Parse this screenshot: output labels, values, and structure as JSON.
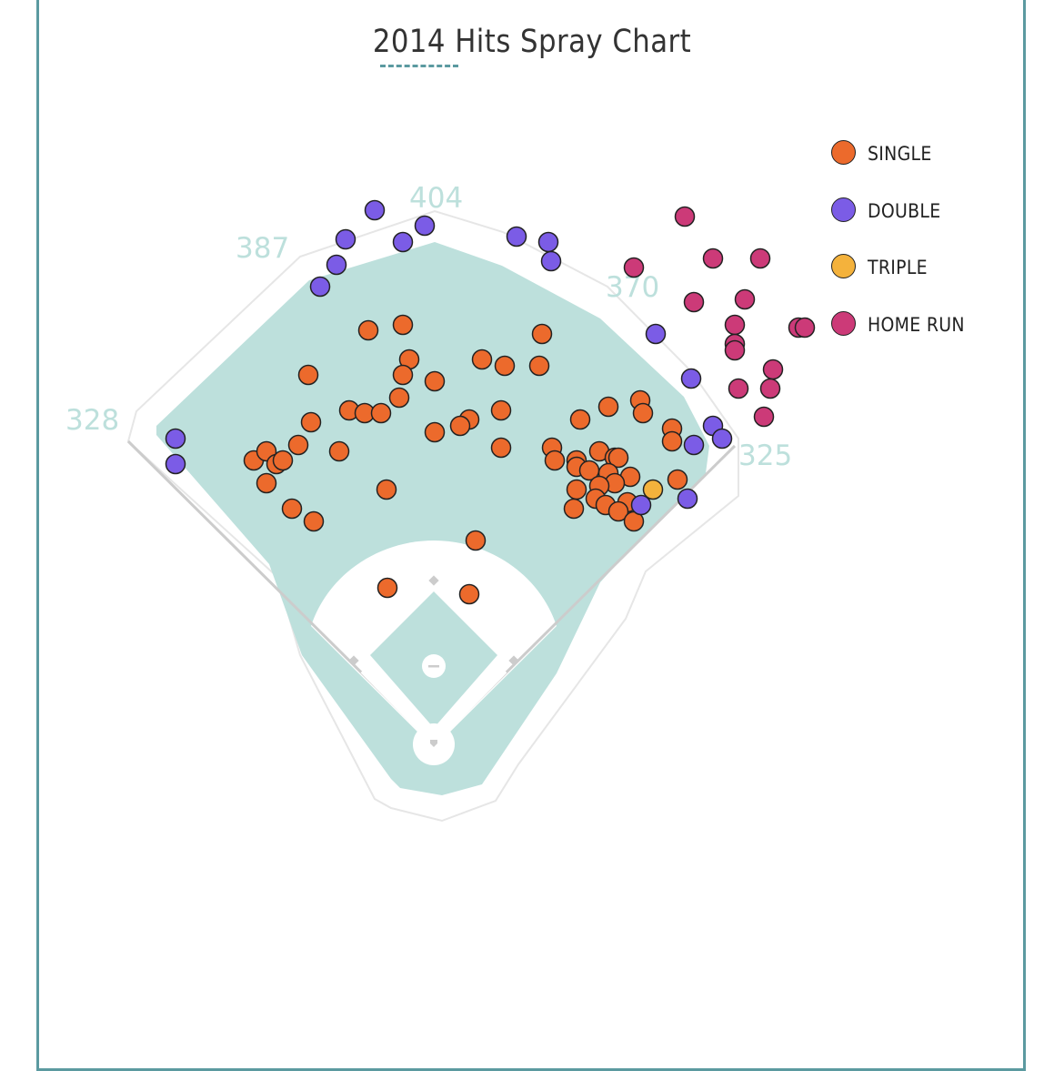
{
  "chart_data": {
    "type": "scatter",
    "title": "2014 Hits Spray Chart",
    "field": {
      "wall_distances": [
        {
          "label": "328",
          "position": "left-field-line"
        },
        {
          "label": "387",
          "position": "left-center"
        },
        {
          "label": "404",
          "position": "center"
        },
        {
          "label": "370",
          "position": "right-center"
        },
        {
          "label": "325",
          "position": "right-field-line"
        }
      ]
    },
    "colors": {
      "single": "#ec6a2c",
      "double": "#7b5ce6",
      "triple": "#f4b23c",
      "home_run": "#cc3a78",
      "grass": "#bde0dc",
      "infield": "#ffffff",
      "frame": "#5b9aa0"
    },
    "legend": [
      {
        "key": "single",
        "label": "SINGLE"
      },
      {
        "key": "double",
        "label": "DOUBLE"
      },
      {
        "key": "triple",
        "label": "TRIPLE"
      },
      {
        "key": "home_run",
        "label": "HOME RUN"
      }
    ],
    "series": [
      {
        "name": "SINGLE",
        "key": "single",
        "points": [
          [
            405,
            363
          ],
          [
            443,
            357
          ],
          [
            596,
            367
          ],
          [
            530,
            395
          ],
          [
            555,
            402
          ],
          [
            593,
            402
          ],
          [
            450,
            395
          ],
          [
            443,
            412
          ],
          [
            478,
            419
          ],
          [
            339,
            412
          ],
          [
            439,
            437
          ],
          [
            384,
            451
          ],
          [
            401,
            454
          ],
          [
            419,
            454
          ],
          [
            342,
            464
          ],
          [
            551,
            451
          ],
          [
            516,
            461
          ],
          [
            506,
            468
          ],
          [
            478,
            475
          ],
          [
            669,
            447
          ],
          [
            704,
            440
          ],
          [
            638,
            461
          ],
          [
            707,
            454
          ],
          [
            739,
            471
          ],
          [
            739,
            485
          ],
          [
            328,
            489
          ],
          [
            373,
            496
          ],
          [
            551,
            492
          ],
          [
            607,
            492
          ],
          [
            279,
            506
          ],
          [
            293,
            496
          ],
          [
            304,
            510
          ],
          [
            311,
            506
          ],
          [
            610,
            506
          ],
          [
            634,
            506
          ],
          [
            659,
            496
          ],
          [
            676,
            503
          ],
          [
            680,
            503
          ],
          [
            634,
            513
          ],
          [
            648,
            517
          ],
          [
            669,
            520
          ],
          [
            693,
            524
          ],
          [
            293,
            531
          ],
          [
            676,
            531
          ],
          [
            659,
            534
          ],
          [
            634,
            538
          ],
          [
            425,
            538
          ],
          [
            745,
            527
          ],
          [
            655,
            548
          ],
          [
            666,
            555
          ],
          [
            690,
            552
          ],
          [
            631,
            559
          ],
          [
            680,
            562
          ],
          [
            321,
            559
          ],
          [
            345,
            573
          ],
          [
            697,
            573
          ],
          [
            523,
            594
          ],
          [
            426,
            646
          ],
          [
            516,
            653
          ]
        ]
      },
      {
        "name": "DOUBLE",
        "key": "double",
        "points": [
          [
            412,
            231
          ],
          [
            467,
            248
          ],
          [
            380,
            263
          ],
          [
            443,
            266
          ],
          [
            568,
            260
          ],
          [
            603,
            266
          ],
          [
            606,
            287
          ],
          [
            370,
            291
          ],
          [
            352,
            315
          ],
          [
            721,
            367
          ],
          [
            760,
            416
          ],
          [
            784,
            468
          ],
          [
            794,
            482
          ],
          [
            763,
            489
          ],
          [
            193,
            482
          ],
          [
            193,
            510
          ],
          [
            705,
            555
          ],
          [
            756,
            548
          ]
        ]
      },
      {
        "name": "TRIPLE",
        "key": "triple",
        "points": [
          [
            718,
            538
          ]
        ]
      },
      {
        "name": "HOME RUN",
        "key": "home_run",
        "points": [
          [
            753,
            238
          ],
          [
            697,
            294
          ],
          [
            784,
            284
          ],
          [
            836,
            284
          ],
          [
            763,
            332
          ],
          [
            819,
            329
          ],
          [
            808,
            357
          ],
          [
            878,
            360
          ],
          [
            885,
            360
          ],
          [
            808,
            378
          ],
          [
            808,
            385
          ],
          [
            850,
            406
          ],
          [
            812,
            427
          ],
          [
            847,
            427
          ],
          [
            840,
            458
          ]
        ]
      }
    ]
  }
}
